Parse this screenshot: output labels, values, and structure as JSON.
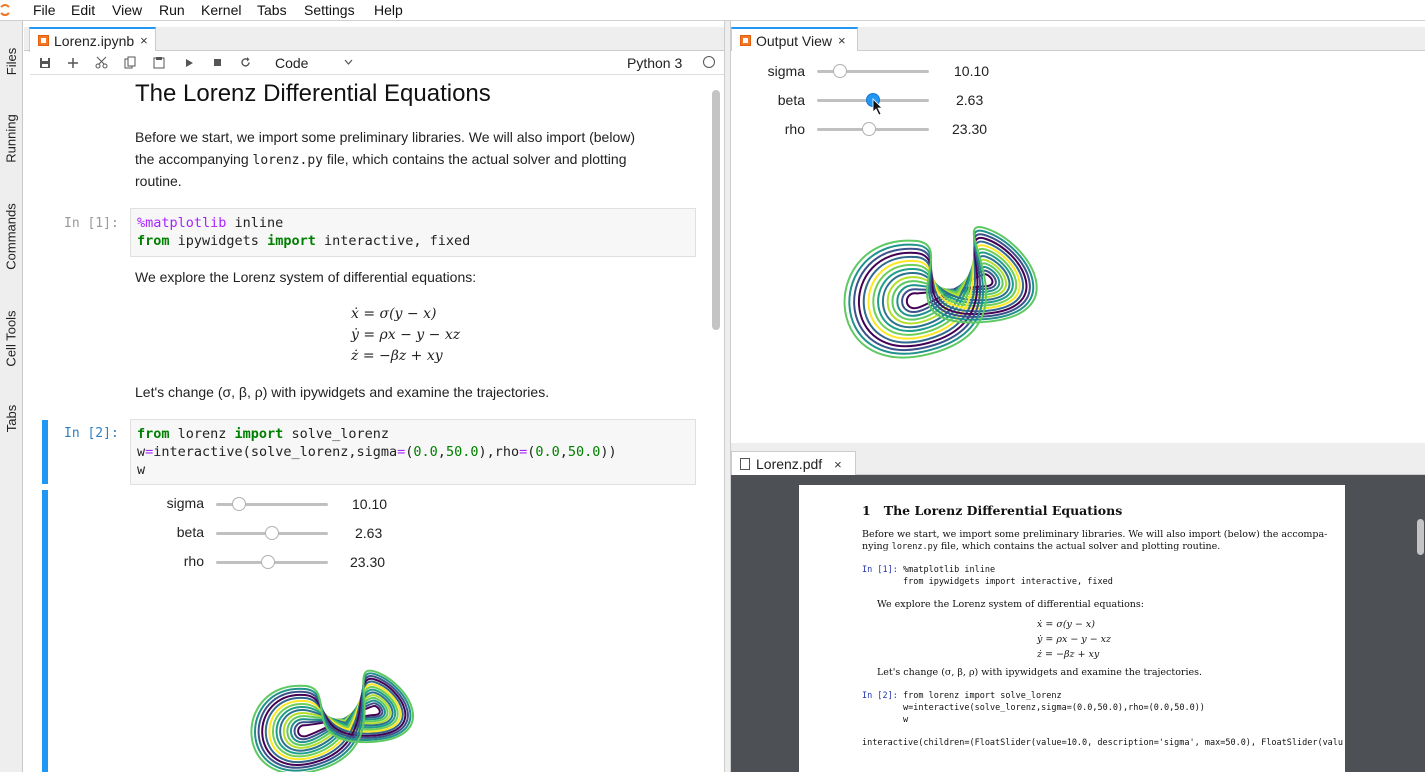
{
  "menubar": {
    "items": [
      "File",
      "Edit",
      "View",
      "Run",
      "Kernel",
      "Tabs",
      "Settings",
      "Help"
    ]
  },
  "leftbar": {
    "tabs": [
      "Files",
      "Running",
      "Commands",
      "Cell Tools",
      "Tabs"
    ]
  },
  "notebook": {
    "tab_title": "Lorenz.ipynb",
    "tab_close": "×",
    "toolbar": {
      "cell_type": "Code",
      "kernel": "Python 3"
    },
    "heading": "The Lorenz Differential Equations",
    "intro_p1": "Before we start, we import some preliminary libraries. We will also import (below)",
    "intro_p2_pre": "the accompanying ",
    "intro_p2_code": "lorenz.py",
    "intro_p2_post": " file, which contains the actual solver and plotting",
    "intro_p3": "routine.",
    "cell1": {
      "prompt": "In [1]:",
      "line1_magic": "%matplotlib",
      "line1_rest": " inline",
      "line2_kw1": "from",
      "line2_mid": " ipywidgets ",
      "line2_kw2": "import",
      "line2_rest": " interactive, fixed"
    },
    "explore_text": "We explore the Lorenz system of differential equations:",
    "equations": [
      "ẋ = σ(y − x)",
      "ẏ = ρx − y − xz",
      "ż = −βz + xy"
    ],
    "change_text": "Let's change (σ, β, ρ) with ipywidgets and examine the trajectories.",
    "cell2": {
      "prompt": "In [2]:",
      "l1_kw1": "from",
      "l1_mid": " lorenz ",
      "l1_kw2": "import",
      "l1_rest": " solve_lorenz",
      "l2_a": "w",
      "l2_eq": "=",
      "l2_b": "interactive(solve_lorenz,sigma",
      "l2_eq2": "=",
      "l2_c": "(",
      "l2_n1": "0.0",
      "l2_d": ",",
      "l2_n2": "50.0",
      "l2_e": "),rho",
      "l2_eq3": "=",
      "l2_f": "(",
      "l2_n3": "0.0",
      "l2_g": ",",
      "l2_n4": "50.0",
      "l2_h": "))",
      "l3": "w"
    },
    "sliders": [
      {
        "label": "sigma",
        "value": "10.10",
        "fraction": 0.202
      },
      {
        "label": "beta",
        "value": "2.63",
        "fraction": 0.5
      },
      {
        "label": "rho",
        "value": "23.30",
        "fraction": 0.466
      }
    ]
  },
  "output_view": {
    "tab_title": "Output View",
    "tab_close": "×",
    "sliders": [
      {
        "label": "sigma",
        "value": "10.10",
        "fraction": 0.202
      },
      {
        "label": "beta",
        "value": "2.63",
        "fraction": 0.5
      },
      {
        "label": "rho",
        "value": "23.30",
        "fraction": 0.466
      }
    ]
  },
  "pdf": {
    "tab_title": "Lorenz.pdf",
    "tab_close": "×",
    "heading_num": "1",
    "heading": "The Lorenz Differential Equations",
    "p1_line1": "Before we start, we import some preliminary libraries. We will also import (below) the accompa-",
    "p1_line2_pre": "nying ",
    "p1_line2_code": "lorenz.py",
    "p1_line2_post": " file, which contains the actual solver and plotting routine.",
    "cell1_prompt": "In [1]:",
    "cell1_l1": "%matplotlib inline",
    "cell1_l2": "from ipywidgets import interactive, fixed",
    "explore_text": "We explore the Lorenz system of differential equations:",
    "equations": [
      "ẋ = σ(y − x)",
      "ẏ = ρx − y − xz",
      "ż = −βz + xy"
    ],
    "change_text": "Let's change (σ, β, ρ) with ipywidgets and examine the trajectories.",
    "cell2_prompt": "In [2]:",
    "cell2_l1": "from lorenz import solve_lorenz",
    "cell2_l2": "w=interactive(solve_lorenz,sigma=(0.0,50.0),rho=(0.0,50.0))",
    "cell2_l3": "w",
    "output_line": "interactive(children=(FloatSlider(value=10.0, description='sigma', max=50.0), FloatSlider(valu"
  },
  "colors": {
    "accent": "#2196f3",
    "pdf_bg": "#4d5155",
    "keyword": "#008000",
    "magic": "#aa22ff"
  }
}
